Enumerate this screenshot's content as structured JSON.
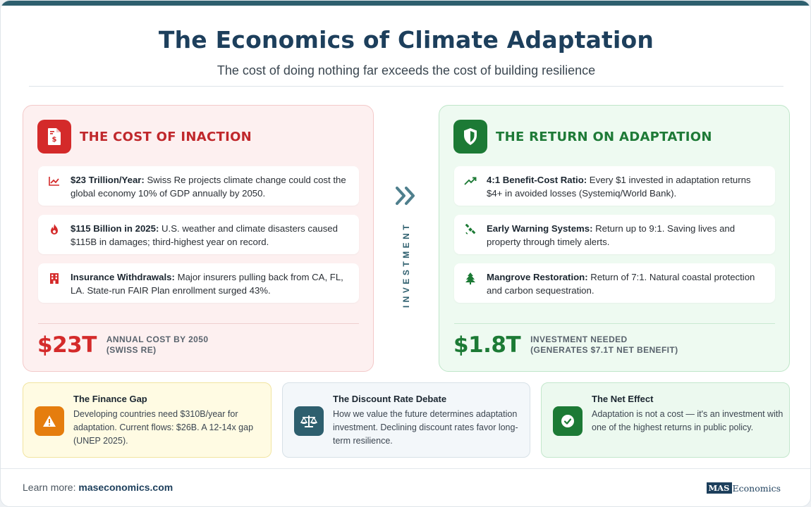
{
  "header": {
    "title": "The Economics of Climate Adaptation",
    "subtitle": "The cost of doing nothing far exceeds the cost of building resilience"
  },
  "cost_panel": {
    "title": "THE COST OF INACTION",
    "icon": "invoice-dollar-icon",
    "items": [
      {
        "icon": "chart-line-icon",
        "bold": "$23 Trillion/Year:",
        "text": " Swiss Re projects climate change could cost the global economy 10% of GDP annually by 2050."
      },
      {
        "icon": "fire-icon",
        "bold": "$115 Billion in 2025:",
        "text": " U.S. weather and climate disasters caused $115B in damages; third-highest year on record."
      },
      {
        "icon": "building-icon",
        "bold": "Insurance Withdrawals:",
        "text": " Major insurers pulling back from CA, FL, LA. State-run FAIR Plan enrollment surged 43%."
      }
    ],
    "stat_value": "$23T",
    "stat_label_1": "Annual cost by 2050",
    "stat_label_2": "(Swiss Re)"
  },
  "connector": {
    "icon": "double-chevron-right-icon",
    "label": "INVESTMENT"
  },
  "return_panel": {
    "title": "THE RETURN ON ADAPTATION",
    "icon": "shield-icon",
    "items": [
      {
        "icon": "trend-up-icon",
        "bold": "4:1 Benefit-Cost Ratio:",
        "text": " Every $1 invested in adaptation returns $4+ in avoided losses (Systemiq/World Bank)."
      },
      {
        "icon": "satellite-icon",
        "bold": "Early Warning Systems:",
        "text": " Return up to 9:1. Saving lives and property through timely alerts."
      },
      {
        "icon": "tree-icon",
        "bold": "Mangrove Restoration:",
        "text": " Return of 7:1. Natural coastal protection and carbon sequestration."
      }
    ],
    "stat_value": "$1.8T",
    "stat_label_1": "Investment needed",
    "stat_label_2": "(generates $7.1T net benefit)"
  },
  "boxes": [
    {
      "icon": "warning-icon",
      "title": "The Finance Gap",
      "text": "Developing countries need $310B/year for adaptation. Current flows: $26B. A 12-14x gap (UNEP 2025)."
    },
    {
      "icon": "scale-icon",
      "title": "The Discount Rate Debate",
      "text": "How we value the future determines adaptation investment. Declining discount rates favor long-term resilience."
    },
    {
      "icon": "check-circle-icon",
      "title": "The Net Effect",
      "text": "Adaptation is not a cost — it's an investment with one of the highest returns in public policy."
    }
  ],
  "footer": {
    "prefix": "Learn more: ",
    "link": "maseconomics.com",
    "brand_mark": "MAS",
    "brand_text": "Economics"
  },
  "colors": {
    "accent": "#2e5f6e",
    "title": "#1d3f5c",
    "cost_red": "#d42a2a",
    "return_green": "#1c7a35",
    "warning_orange": "#e57d0e"
  }
}
